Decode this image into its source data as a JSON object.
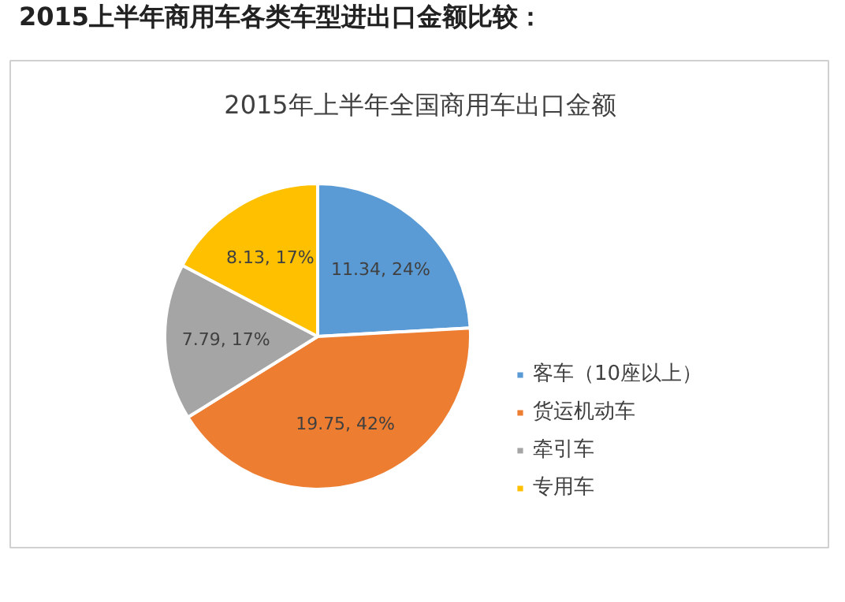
{
  "chart_data": {
    "type": "pie",
    "title": "2015上半年商用车各类车型进出口金额比较：",
    "subtitle": "2015年上半年全国商用车出口金额",
    "categories": [
      "客车（10座以上）",
      "货运机动车",
      "牵引车",
      "专用车"
    ],
    "values": [
      11.34,
      19.75,
      7.79,
      8.13
    ],
    "colors": [
      "#5b9bd5",
      "#ed7d31",
      "#a5a5a5",
      "#ffc000"
    ],
    "value_labels": [
      "11.34, 24%",
      "19.75, 42%",
      "7.79, 17%",
      "8.13, 17%"
    ],
    "legend": "right"
  }
}
